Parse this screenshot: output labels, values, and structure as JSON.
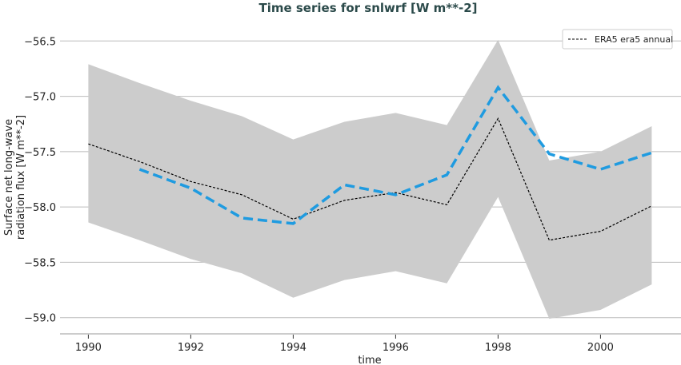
{
  "chart_data": {
    "type": "line",
    "title": "Time series for snlwrf [W m**-2]",
    "xlabel": "time",
    "ylabel": "Surface net long-wave radiation flux [W m**-2]",
    "ylabel_lines": [
      "Surface net long-wave",
      "radiation flux [W m**-2]"
    ],
    "xlim": [
      1989.5,
      2001.5
    ],
    "ylim": [
      -59.05,
      -56.45
    ],
    "x_ticks": [
      1990,
      1992,
      1994,
      1996,
      1998,
      2000
    ],
    "y_ticks": [
      -56.5,
      -57.0,
      -57.5,
      -58.0,
      -58.5,
      -59.0
    ],
    "grid": "horizontal",
    "legend_position": "top-right",
    "x": [
      1990,
      1991,
      1992,
      1993,
      1994,
      1995,
      1996,
      1997,
      1998,
      1999,
      2000,
      2001
    ],
    "series": [
      {
        "name": "ERA5 era5 annual",
        "color": "#000000",
        "style": "dashed",
        "values": [
          -57.43,
          -57.59,
          -57.77,
          -57.89,
          -58.11,
          -57.94,
          -57.87,
          -57.98,
          -57.2,
          -58.3,
          -58.22,
          -57.99
        ]
      },
      {
        "color": "#1f9be0",
        "style": "dashed-thick",
        "values": [
          null,
          -57.66,
          -57.83,
          -58.1,
          -58.15,
          -57.8,
          -57.89,
          -57.71,
          -56.92,
          -57.52,
          -57.66,
          -57.51
        ]
      }
    ],
    "band": {
      "color": "#cccccc",
      "upper": [
        -56.71,
        -56.88,
        -57.04,
        -57.18,
        -57.39,
        -57.23,
        -57.15,
        -57.26,
        -56.49,
        -57.58,
        -57.5,
        -57.27
      ],
      "lower": [
        -58.14,
        -58.3,
        -58.47,
        -58.6,
        -58.82,
        -58.66,
        -58.58,
        -58.69,
        -57.91,
        -59.01,
        -58.93,
        -58.7
      ]
    },
    "title_color": "#2b4a4a"
  }
}
